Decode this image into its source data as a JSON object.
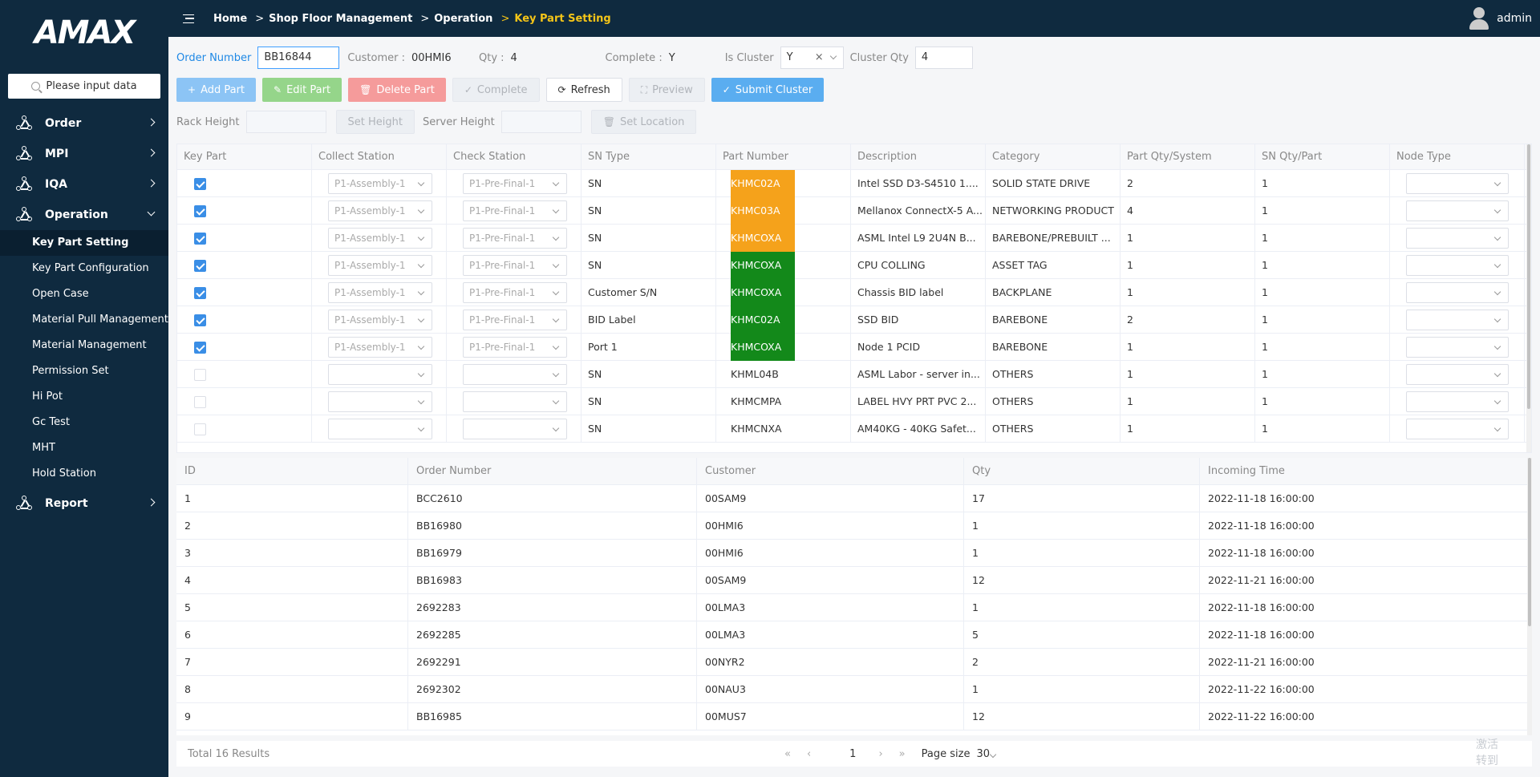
{
  "logo": "AMAX",
  "sidebar": {
    "search_placeholder": "Please input data",
    "menus": [
      {
        "label": "Order"
      },
      {
        "label": "MPI"
      },
      {
        "label": "IQA"
      },
      {
        "label": "Operation"
      }
    ],
    "sub_items": [
      "Key Part Setting",
      "Key Part Configuration",
      "Open Case",
      "Material Pull Management",
      "Material Management",
      "Permission Set",
      "Hi Pot",
      "Gc Test",
      "MHT",
      "Hold Station"
    ],
    "report": "Report"
  },
  "header": {
    "crumbs": [
      "Home",
      "Shop Floor Management",
      "Operation",
      "Key Part Setting"
    ],
    "user": "admin"
  },
  "form": {
    "order_label": "Order Number",
    "order_value": "BB16844",
    "customer_label": "Customer :",
    "customer_value": "00HMI6",
    "qty_label": "Qty :",
    "qty_value": "4",
    "complete_label": "Complete :",
    "complete_value": "Y",
    "cluster_label": "Is Cluster",
    "cluster_value": "Y",
    "cluster_clear": "×",
    "cluster_qty_label": "Cluster Qty",
    "cluster_qty_value": "4",
    "rack_height_label": "Rack Height",
    "server_height_label": "Server Height"
  },
  "buttons": {
    "add": "Add Part",
    "edit": "Edit Part",
    "delete": "Delete Part",
    "complete": "Complete",
    "refresh": "Refresh",
    "preview": "Preview",
    "submit": "Submit Cluster",
    "set_height": "Set Height",
    "set_location": "Set Location"
  },
  "parts_table": {
    "headers": [
      "Key Part",
      "Collect Station",
      "Check Station",
      "SN Type",
      "Part Number",
      "Description",
      "Category",
      "Part Qty/System",
      "SN Qty/Part",
      "Node Type"
    ],
    "rows": [
      {
        "checked": true,
        "collect": "P1-Assembly-1",
        "check": "P1-Pre-Final-1",
        "sn_type": "SN",
        "part": "KHMC02A",
        "color": "orange",
        "desc": "Intel SSD D3-S4510 1....",
        "cat": "SOLID STATE DRIVE",
        "qty": "2",
        "snqty": "1"
      },
      {
        "checked": true,
        "collect": "P1-Assembly-1",
        "check": "P1-Pre-Final-1",
        "sn_type": "SN",
        "part": "KHMC03A",
        "color": "orange",
        "desc": "Mellanox ConnectX-5 A...",
        "cat": "NETWORKING PRODUCT",
        "qty": "4",
        "snqty": "1"
      },
      {
        "checked": true,
        "collect": "P1-Assembly-1",
        "check": "P1-Pre-Final-1",
        "sn_type": "SN",
        "part": "KHMCOXA",
        "color": "orange",
        "desc": "ASML Intel L9 2U4N B...",
        "cat": "BAREBONE/PREBUILT ...",
        "qty": "1",
        "snqty": "1"
      },
      {
        "checked": true,
        "collect": "P1-Assembly-1",
        "check": "P1-Pre-Final-1",
        "sn_type": "SN",
        "part": "KHMCOXA",
        "color": "green",
        "desc": "CPU COLLING",
        "cat": "ASSET TAG",
        "qty": "1",
        "snqty": "1"
      },
      {
        "checked": true,
        "collect": "P1-Assembly-1",
        "check": "P1-Pre-Final-1",
        "sn_type": "Customer S/N",
        "part": "KHMCOXA",
        "color": "green",
        "desc": "Chassis BID label",
        "cat": "BACKPLANE",
        "qty": "1",
        "snqty": "1"
      },
      {
        "checked": true,
        "collect": "P1-Assembly-1",
        "check": "P1-Pre-Final-1",
        "sn_type": "BID Label",
        "part": "KHMC02A",
        "color": "green",
        "desc": "SSD BID",
        "cat": "BAREBONE",
        "qty": "2",
        "snqty": "1"
      },
      {
        "checked": true,
        "collect": "P1-Assembly-1",
        "check": "P1-Pre-Final-1",
        "sn_type": "Port 1",
        "part": "KHMCOXA",
        "color": "green",
        "desc": "Node 1 PCID",
        "cat": "BAREBONE",
        "qty": "1",
        "snqty": "1"
      },
      {
        "checked": false,
        "collect": "",
        "check": "",
        "sn_type": "SN",
        "part": "KHML04B",
        "color": "plain",
        "desc": "ASML Labor - server in...",
        "cat": "OTHERS",
        "qty": "1",
        "snqty": "1"
      },
      {
        "checked": false,
        "collect": "",
        "check": "",
        "sn_type": "SN",
        "part": "KHMCMPA",
        "color": "plain",
        "desc": "LABEL HVY PRT PVC 2...",
        "cat": "OTHERS",
        "qty": "1",
        "snqty": "1"
      },
      {
        "checked": false,
        "collect": "",
        "check": "",
        "sn_type": "SN",
        "part": "KHMCNXA",
        "color": "plain",
        "desc": "AM40KG - 40KG Safet...",
        "cat": "OTHERS",
        "qty": "1",
        "snqty": "1"
      }
    ]
  },
  "orders_table": {
    "headers": [
      "ID",
      "Order Number",
      "Customer",
      "Qty",
      "Incoming Time"
    ],
    "rows": [
      [
        "1",
        "BCC2610",
        "00SAM9",
        "17",
        "2022-11-18 16:00:00"
      ],
      [
        "2",
        "BB16980",
        "00HMI6",
        "1",
        "2022-11-18 16:00:00"
      ],
      [
        "3",
        "BB16979",
        "00HMI6",
        "1",
        "2022-11-18 16:00:00"
      ],
      [
        "4",
        "BB16983",
        "00SAM9",
        "12",
        "2022-11-21 16:00:00"
      ],
      [
        "5",
        "2692283",
        "00LMA3",
        "1",
        "2022-11-18 16:00:00"
      ],
      [
        "6",
        "2692285",
        "00LMA3",
        "5",
        "2022-11-18 16:00:00"
      ],
      [
        "7",
        "2692291",
        "00NYR2",
        "2",
        "2022-11-21 16:00:00"
      ],
      [
        "8",
        "2692302",
        "00NAU3",
        "1",
        "2022-11-22 16:00:00"
      ],
      [
        "9",
        "BB16985",
        "00MUS7",
        "12",
        "2022-11-22 16:00:00"
      ]
    ]
  },
  "footer": {
    "total": "Total 16 Results",
    "first": "«",
    "prev": "‹",
    "page": "1",
    "next": "›",
    "last": "»",
    "page_size_label": "Page size",
    "page_size": "30"
  },
  "watermark": "激活\n转到"
}
